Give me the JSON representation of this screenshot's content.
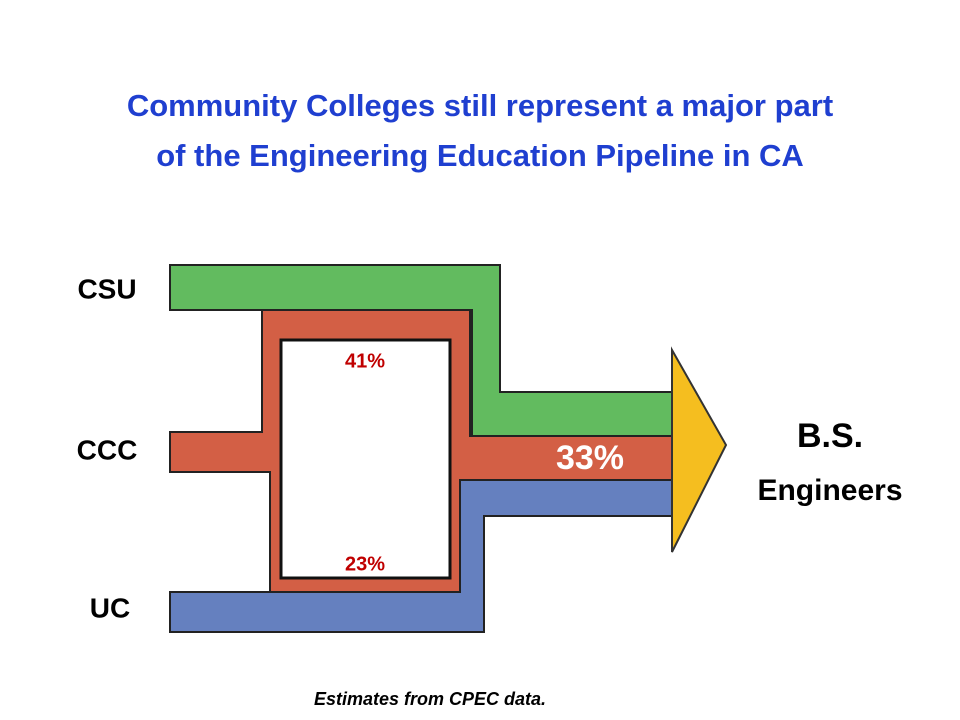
{
  "title_lines": [
    "Community Colleges still represent a major part",
    "of the Engineering Education Pipeline in CA"
  ],
  "sources": [
    "CSU",
    "CCC",
    "UC"
  ],
  "ccc_shares": {
    "to_csu": "41%",
    "to_uc": "23%",
    "direct": "33%"
  },
  "output": {
    "label": "B.S.",
    "sublabel": "Engineers"
  },
  "footnote": "Estimates from CPEC data."
}
